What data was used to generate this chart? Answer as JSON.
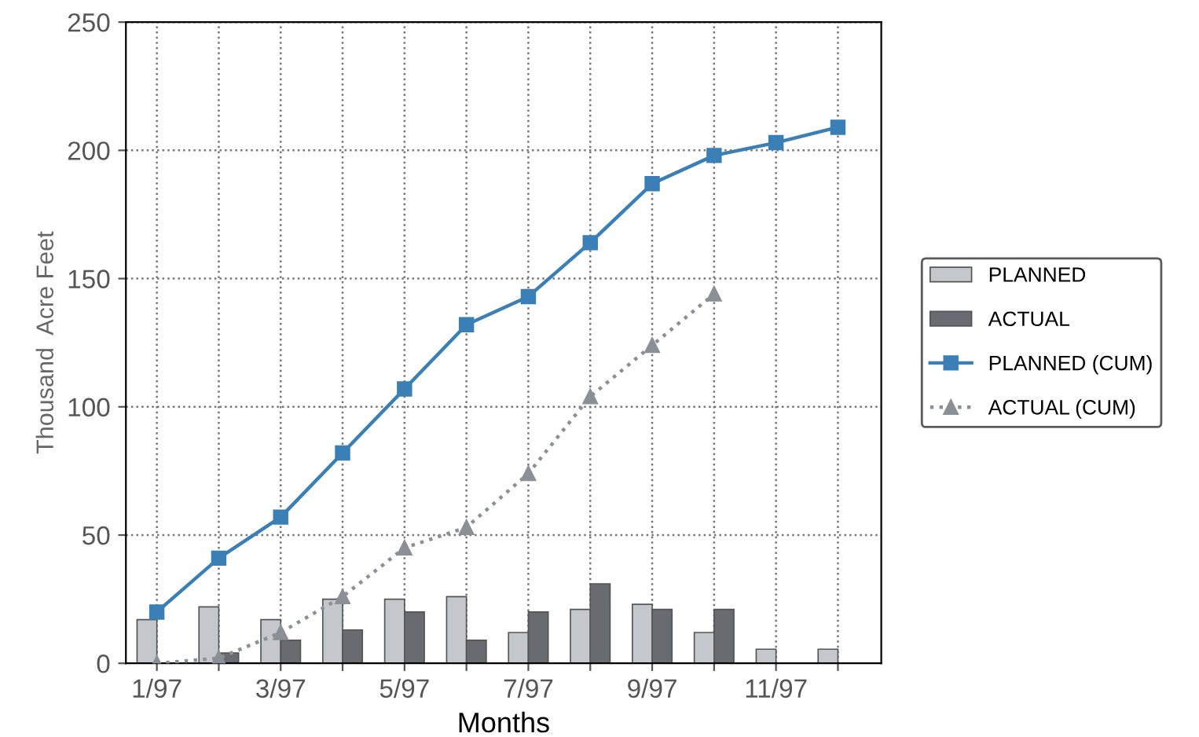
{
  "chart_data": {
    "type": "bar",
    "xlabel": "Months",
    "ylabel": "Thousand  Acre Feet",
    "categories": [
      "1/97",
      null,
      "3/97",
      null,
      "5/97",
      null,
      "7/97",
      null,
      "9/97",
      null,
      "11/97",
      null
    ],
    "series": [
      {
        "name": "PLANNED",
        "color": "#c4c8cc",
        "values": [
          17,
          22,
          17,
          25,
          25,
          26,
          12,
          21,
          23,
          12,
          5.5,
          5.5
        ]
      },
      {
        "name": "ACTUAL",
        "color": "#686c70",
        "values": [
          null,
          4,
          9,
          13,
          20,
          9,
          20,
          31,
          21,
          21,
          null,
          null
        ]
      },
      {
        "name": "PLANNED (CUM)",
        "type": "line",
        "color": "#3a7fb5",
        "marker": "square",
        "line_style": "solid",
        "values": [
          20,
          41,
          57,
          82,
          107,
          132,
          143,
          164,
          187,
          198,
          203,
          209
        ]
      },
      {
        "name": "ACTUAL (CUM)",
        "type": "line",
        "color": "#8a9096",
        "marker": "triangle",
        "line_style": "dotted",
        "values": [
          0,
          2,
          12,
          26,
          45,
          53,
          74,
          104,
          124,
          144,
          null,
          null
        ]
      }
    ],
    "ylim": [
      0,
      250
    ],
    "yticks": [
      0,
      50,
      100,
      150,
      200,
      250
    ],
    "grid": true,
    "legend": "right"
  }
}
